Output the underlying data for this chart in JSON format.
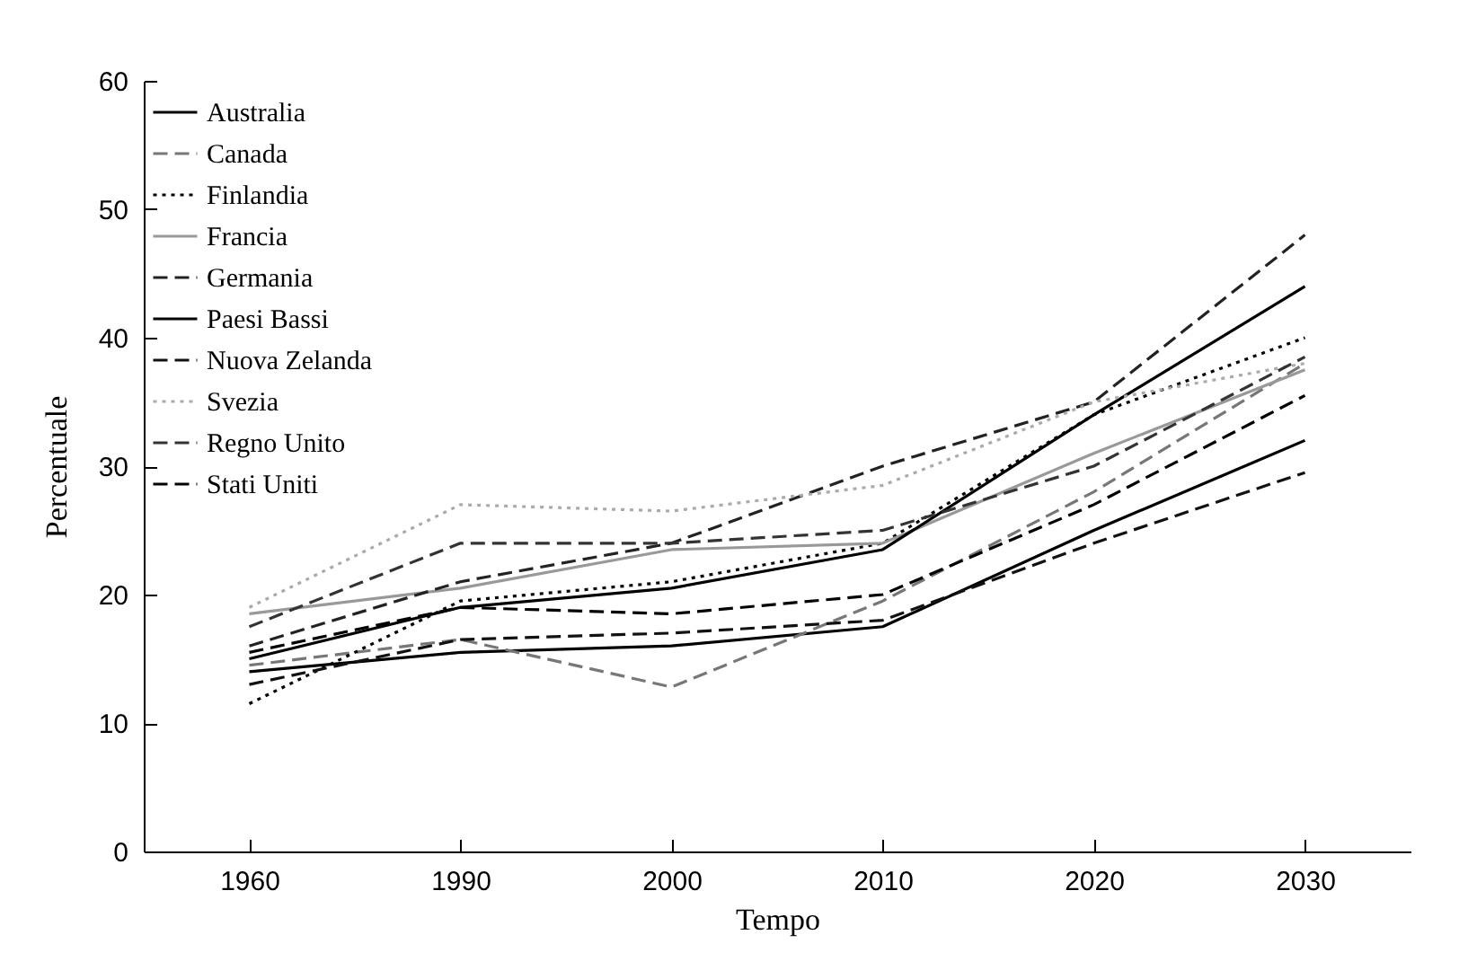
{
  "chart_data": {
    "type": "line",
    "xlabel": "Tempo",
    "ylabel": "Percentuale",
    "categories": [
      "1960",
      "1990",
      "2000",
      "2010",
      "2020",
      "2030"
    ],
    "ylim": [
      0,
      60
    ],
    "yticks": [
      0,
      10,
      20,
      30,
      40,
      50,
      60
    ],
    "legend": "top left",
    "series": [
      {
        "name": "Australia",
        "color": "#000000",
        "line_style": "solid",
        "values": [
          14,
          15.5,
          16,
          17.5,
          25,
          32
        ]
      },
      {
        "name": "Canada",
        "color": "#777777",
        "line_style": "dashed",
        "values": [
          14.5,
          16.5,
          12.8,
          19.5,
          28,
          38
        ]
      },
      {
        "name": "Finlandia",
        "color": "#000000",
        "line_style": "dotted",
        "values": [
          11.5,
          19.5,
          21,
          24,
          34,
          40
        ]
      },
      {
        "name": "Francia",
        "color": "#999999",
        "line_style": "solid",
        "values": [
          18.5,
          20.5,
          23.5,
          24,
          31,
          37.5
        ]
      },
      {
        "name": "Germania",
        "color": "#222222",
        "line_style": "dashed",
        "values": [
          16,
          21,
          24,
          30,
          35,
          48
        ]
      },
      {
        "name": "Paesi Bassi",
        "color": "#000000",
        "line_style": "solid",
        "values": [
          15,
          19,
          20.5,
          23.5,
          34,
          44
        ]
      },
      {
        "name": "Nuova Zelanda",
        "color": "#111111",
        "line_style": "dashed",
        "values": [
          13,
          16.5,
          17,
          18,
          24,
          29.5
        ]
      },
      {
        "name": "Svezia",
        "color": "#aaaaaa",
        "line_style": "dotted",
        "values": [
          19,
          27,
          26.5,
          28.5,
          35,
          38
        ]
      },
      {
        "name": "Regno Unito",
        "color": "#333333",
        "line_style": "dashed",
        "values": [
          17.5,
          24,
          24,
          25,
          30,
          38.5
        ]
      },
      {
        "name": "Stati Uniti",
        "color": "#000000",
        "line_style": "dashed",
        "values": [
          15.5,
          19,
          18.5,
          20,
          27,
          35.5
        ]
      }
    ]
  }
}
